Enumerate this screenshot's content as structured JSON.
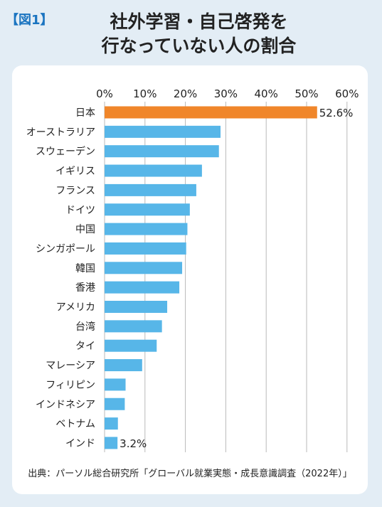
{
  "figure_label": "【図1】",
  "title_lines": [
    "社外学習・自己啓発を",
    "行なっていない人の割合"
  ],
  "source": "出典：パーソル総合研究所「グローバル就業実態・成長意識調査（2022年）」",
  "colors": {
    "background": "#e3edf5",
    "panel": "#ffffff",
    "highlight_bar": "#f0862a",
    "bar": "#57b6e8",
    "grid": "#b9b9b9",
    "accent": "#1a74c0"
  },
  "chart_data": {
    "type": "bar",
    "orientation": "horizontal",
    "title": "社外学習・自己啓発を行なっていない人の割合",
    "xlim": [
      0,
      60
    ],
    "xticks": [
      "0%",
      "10%",
      "20%",
      "30%",
      "40%",
      "50%",
      "60%"
    ],
    "tick_position": "top",
    "grid": true,
    "categories": [
      "日本",
      "オーストラリア",
      "スウェーデン",
      "イギリス",
      "フランス",
      "ドイツ",
      "中国",
      "シンガポール",
      "韓国",
      "香港",
      "アメリカ",
      "台湾",
      "タイ",
      "マレーシア",
      "フィリピン",
      "インドネシア",
      "ベトナム",
      "インド"
    ],
    "values": [
      52.6,
      28.7,
      28.3,
      24.1,
      22.7,
      21.1,
      20.5,
      20.2,
      19.2,
      18.5,
      15.5,
      14.2,
      12.9,
      9.3,
      5.2,
      5.0,
      3.3,
      3.2
    ],
    "data_labels": [
      {
        "index": 0,
        "text": "52.6%"
      },
      {
        "index": 17,
        "text": "3.2%"
      }
    ],
    "highlight_index": 0
  }
}
